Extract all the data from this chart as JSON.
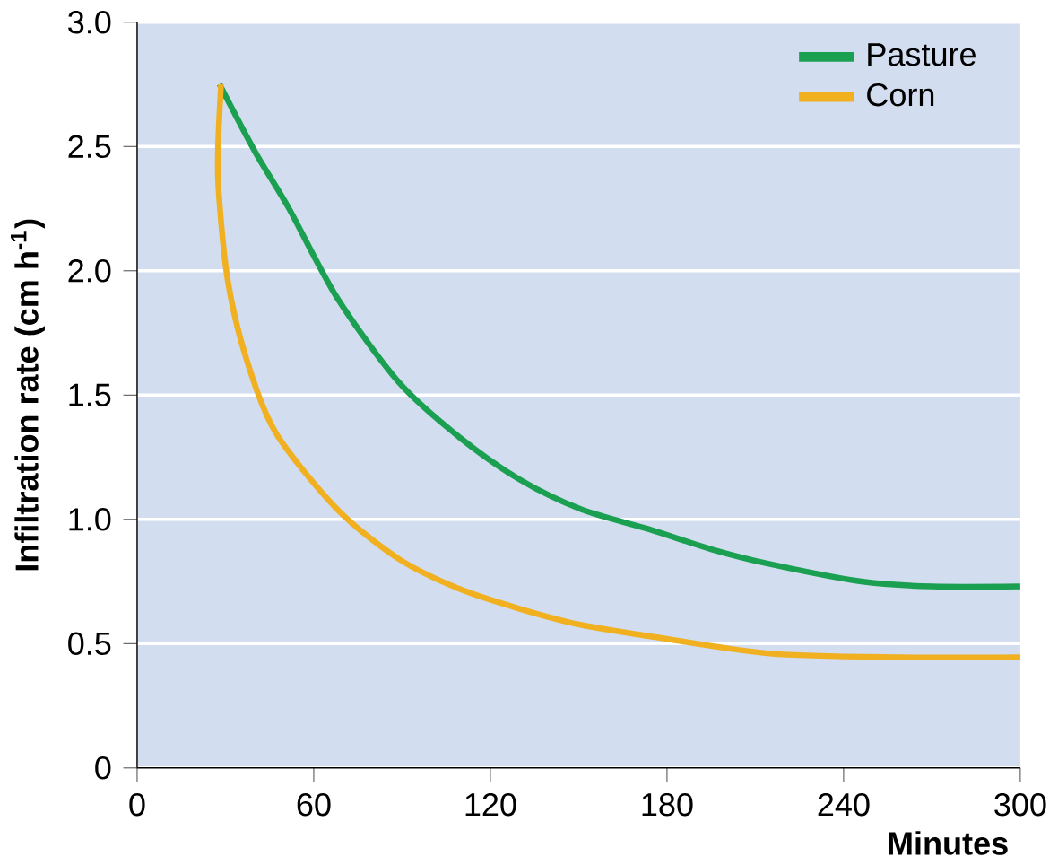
{
  "chart_data": {
    "type": "line",
    "xlabel": "Minutes",
    "ylabel": "Infiltration rate (cm h$^{-1}$)",
    "xlim": [
      0,
      300
    ],
    "ylim": [
      0,
      3.0
    ],
    "xticks": [
      0,
      60,
      120,
      180,
      240,
      300
    ],
    "yticks": [
      {
        "value": 0,
        "label": "0"
      },
      {
        "value": 0.5,
        "label": "0.5"
      },
      {
        "value": 1.0,
        "label": "1.0"
      },
      {
        "value": 1.5,
        "label": "1.5"
      },
      {
        "value": 2.0,
        "label": "2.0"
      },
      {
        "value": 2.5,
        "label": "2.5"
      },
      {
        "value": 3.0,
        "label": "3.0"
      }
    ],
    "grid": "y",
    "legend": "top right",
    "marker": "none",
    "line_style": "solid",
    "series": [
      {
        "name": "Pasture",
        "color": "#1aa050",
        "x": [
          28,
          40,
          51.6,
          68,
          89,
          109.5,
          130,
          151,
          174,
          195,
          215,
          246,
          270,
          300
        ],
        "values": [
          2.75,
          2.48,
          2.25,
          1.89,
          1.55,
          1.33,
          1.16,
          1.04,
          0.96,
          0.88,
          0.82,
          0.75,
          0.73,
          0.73
        ]
      },
      {
        "name": "Corn",
        "color": "#f0b020",
        "x": [
          28.5,
          27.5,
          27.7,
          30.8,
          37,
          47,
          68,
          89,
          109.5,
          130,
          151,
          174,
          215,
          260,
          300
        ],
        "values": [
          2.75,
          2.5,
          2.32,
          1.96,
          1.65,
          1.35,
          1.04,
          0.84,
          0.72,
          0.64,
          0.575,
          0.53,
          0.46,
          0.445,
          0.445
        ]
      }
    ]
  }
}
